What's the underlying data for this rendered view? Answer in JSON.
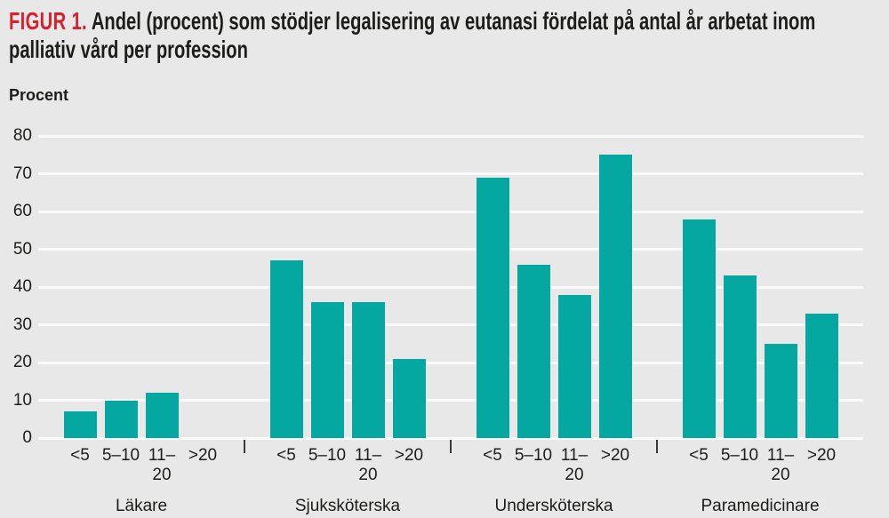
{
  "title": {
    "prefix": "FIGUR 1.",
    "text": " Andel (procent) som stödjer legalisering av eutanasi fördelat på antal år arbetat inom palliativ vård per profession"
  },
  "colors": {
    "background": "#e8e8e8",
    "bar_teal": "#05a8a0",
    "gridline": "#fafafa",
    "text": "#1d1d1b",
    "accent_red": "#d6212e",
    "tick_mark": "#3a3a3a"
  },
  "chart_data": {
    "type": "bar",
    "title": "FIGUR 1. Andel (procent) som stödjer legalisering av eutanasi fördelat på antal år arbetat inom palliativ vård per profession",
    "ylabel": "Procent",
    "xlabel": "",
    "ylim": [
      0,
      80
    ],
    "ytick_step": 10,
    "grid": true,
    "legend": "none",
    "categories": [
      "<5",
      "5–10",
      "11–20",
      ">20"
    ],
    "groups": [
      {
        "name": "Läkare",
        "values": [
          7,
          10,
          12,
          0
        ]
      },
      {
        "name": "Sjuksköterska",
        "values": [
          47,
          36,
          36,
          21
        ]
      },
      {
        "name": "Undersköterska",
        "values": [
          69,
          46,
          38,
          75
        ]
      },
      {
        "name": "Paramedicinare",
        "values": [
          58,
          43,
          25,
          33
        ]
      }
    ]
  }
}
